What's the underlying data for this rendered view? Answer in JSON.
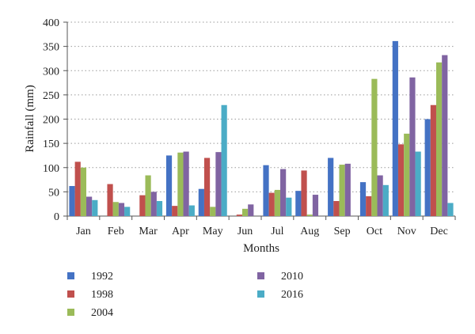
{
  "chart_data": {
    "type": "bar",
    "title": "",
    "xlabel": "Months",
    "ylabel": "Rainfall (mm)",
    "ylim": [
      0,
      400
    ],
    "yticks": [
      0,
      50,
      100,
      150,
      200,
      250,
      300,
      350,
      400
    ],
    "grid": "horizontal dotted",
    "legend_position": "bottom, two columns",
    "categories": [
      "Jan",
      "Feb",
      "Mar",
      "Apr",
      "May",
      "Jun",
      "Jul",
      "Aug",
      "Sep",
      "Oct",
      "Nov",
      "Dec"
    ],
    "series": [
      {
        "name": "1992",
        "color": "#4472c4",
        "values": [
          62,
          0,
          0,
          125,
          56,
          0,
          105,
          52,
          120,
          70,
          361,
          200
        ]
      },
      {
        "name": "1998",
        "color": "#c0504d",
        "values": [
          112,
          66,
          43,
          21,
          120,
          3,
          48,
          94,
          31,
          41,
          148,
          229
        ]
      },
      {
        "name": "2004",
        "color": "#9bbb59",
        "values": [
          100,
          29,
          84,
          131,
          19,
          15,
          54,
          3,
          106,
          283,
          170,
          317
        ]
      },
      {
        "name": "2010",
        "color": "#8064a2",
        "values": [
          40,
          27,
          50,
          133,
          132,
          24,
          97,
          44,
          108,
          84,
          286,
          332
        ]
      },
      {
        "name": "2016",
        "color": "#4bacc6",
        "values": [
          33,
          19,
          31,
          22,
          229,
          0,
          38,
          0,
          0,
          64,
          133,
          27
        ]
      }
    ]
  }
}
